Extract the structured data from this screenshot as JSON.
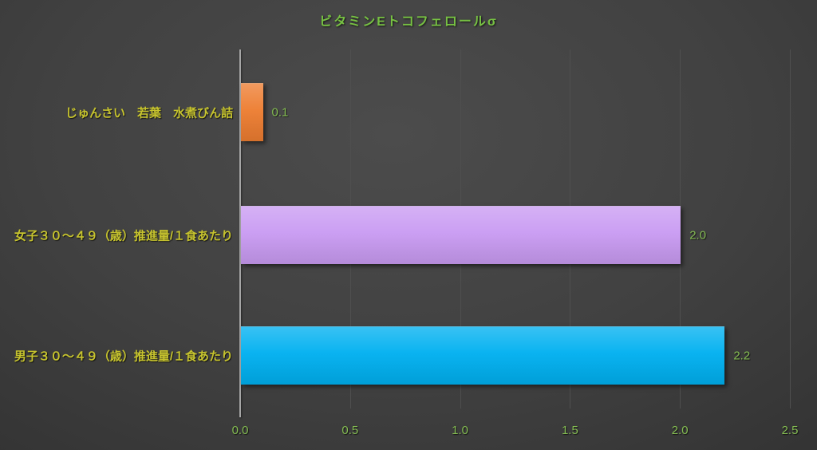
{
  "chart_data": {
    "type": "bar",
    "orientation": "horizontal",
    "title": "ビタミンEトコフェロールσ",
    "categories": [
      "じゅんさい　若葉　水煮びん詰",
      "女子３０～４９（歳）推進量/１食あたり",
      "男子３０～４９（歳）推進量/１食あたり"
    ],
    "values": [
      0.1,
      2.0,
      2.2
    ],
    "value_labels": [
      "0.1",
      "2.0",
      "2.2"
    ],
    "bar_colors": [
      "#ED7D31",
      "#C99BF2",
      "#00B0F0"
    ],
    "x_ticks": [
      0.0,
      0.5,
      1.0,
      1.5,
      2.0,
      2.5
    ],
    "x_tick_labels": [
      "0.0",
      "0.5",
      "1.0",
      "1.5",
      "2.0",
      "2.5"
    ],
    "xlim": [
      0,
      2.5
    ],
    "xlabel": "",
    "ylabel": "",
    "grid": true,
    "legend": false
  },
  "colors": {
    "background_center": "#4c4c4c",
    "background_edge": "#2d2d2d",
    "title_text": "#77C143",
    "category_text": "#C6C32E",
    "value_text": "#84BC52",
    "tick_text": "#84BC52",
    "axis_line": "#A6A6A6",
    "gridline": "#4f4f4f"
  }
}
